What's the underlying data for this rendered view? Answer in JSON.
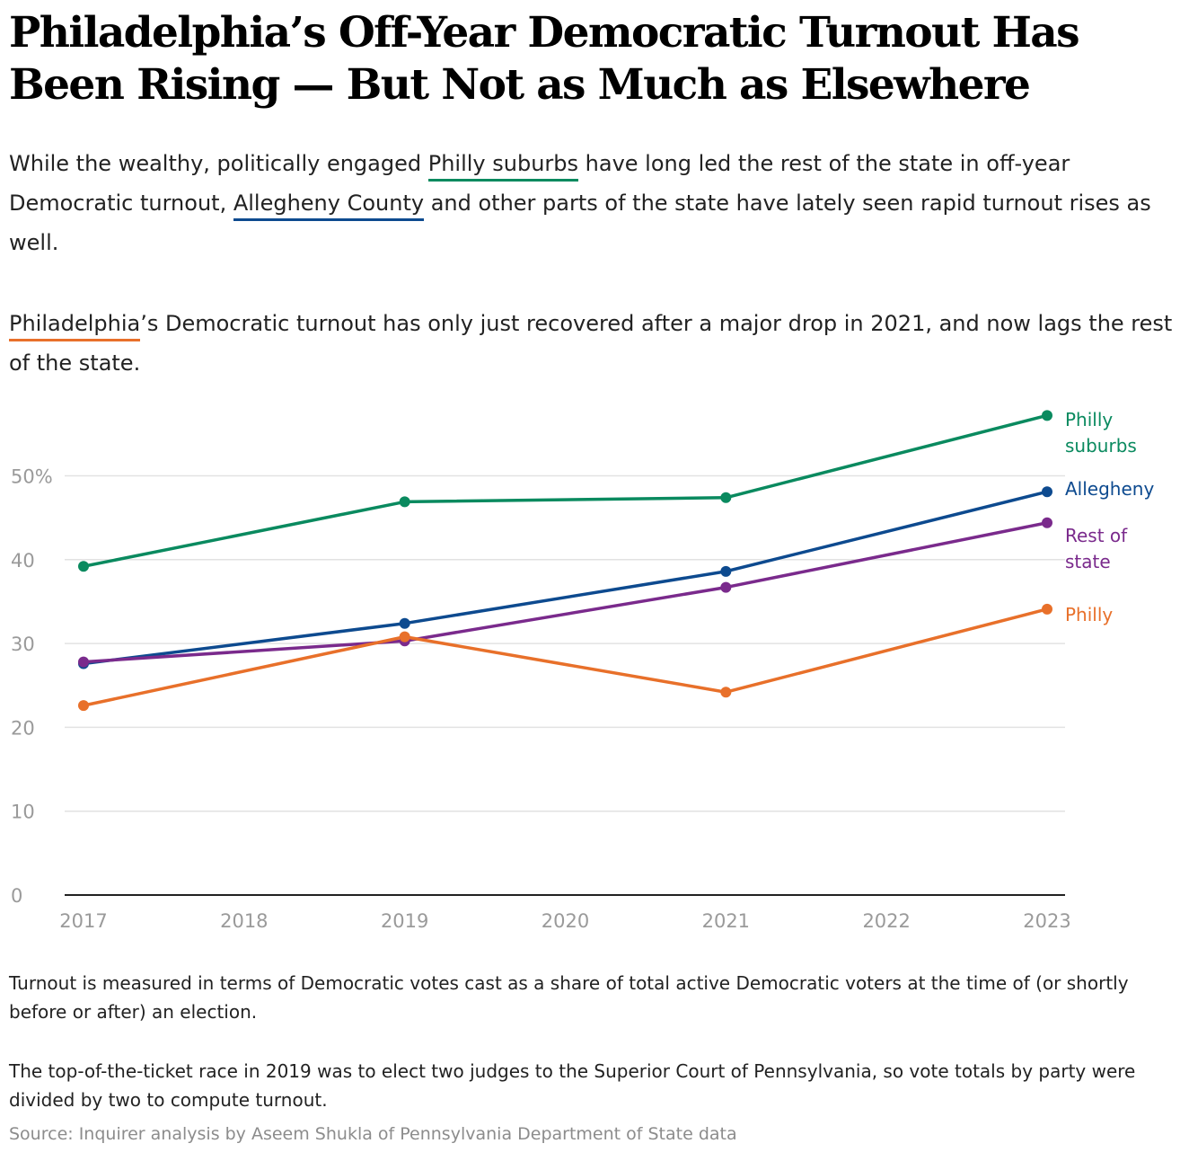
{
  "headline": "Philadelphia’s Off-Year Democratic Turnout Has Been Rising — But Not as Much as Elsewhere",
  "intro1": {
    "part1": "While the wealthy, politically engaged ",
    "suburbs_link": "Philly suburbs",
    "part2": " have long led the rest of the state in off-year Democratic turnout, ",
    "allegheny_link": "Allegheny County",
    "part3": " and other parts of the state have lately seen rapid turnout rises as well."
  },
  "intro2": {
    "philly_link": "Philadelphia",
    "rest": "’s Democratic turnout has only just recovered after a major drop in 2021, and now lags the rest of the state."
  },
  "colors": {
    "suburbs": "#0a8a5f",
    "allegheny": "#0d4a8f",
    "rest_of_state": "#7a2a8c",
    "philly": "#e8702a"
  },
  "chart_data": {
    "type": "line",
    "x": [
      2017,
      2019,
      2021,
      2023
    ],
    "x_ticks": [
      "2017",
      "2018",
      "2019",
      "2020",
      "2021",
      "2022",
      "2023"
    ],
    "y_ticks": [
      "0",
      "10",
      "20",
      "30",
      "40",
      "50%"
    ],
    "ylim": [
      0,
      60
    ],
    "series": [
      {
        "key": "suburbs",
        "name": "Philly suburbs",
        "label_lines": [
          "Philly",
          "suburbs"
        ],
        "values": [
          39.2,
          46.9,
          47.4,
          57.2
        ]
      },
      {
        "key": "allegheny",
        "name": "Allegheny",
        "label_lines": [
          "Allegheny"
        ],
        "values": [
          27.6,
          32.4,
          38.6,
          48.1
        ]
      },
      {
        "key": "rest_of_state",
        "name": "Rest of state",
        "label_lines": [
          "Rest of",
          "state"
        ],
        "values": [
          27.8,
          30.3,
          36.7,
          44.4
        ]
      },
      {
        "key": "philly",
        "name": "Philly",
        "label_lines": [
          "Philly"
        ],
        "values": [
          22.6,
          30.8,
          24.2,
          34.1
        ]
      }
    ]
  },
  "notes": {
    "note1": "Turnout is measured in terms of Democratic votes cast as a share of total active Democratic voters at the time of (or shortly before or after) an election.",
    "note2": "The top-of-the-ticket race in 2019 was to elect two judges to the Superior Court of Pennsylvania, so vote totals by party were divided by two to compute turnout."
  },
  "source": "Source: Inquirer analysis by Aseem Shukla of Pennsylvania Department of State data"
}
